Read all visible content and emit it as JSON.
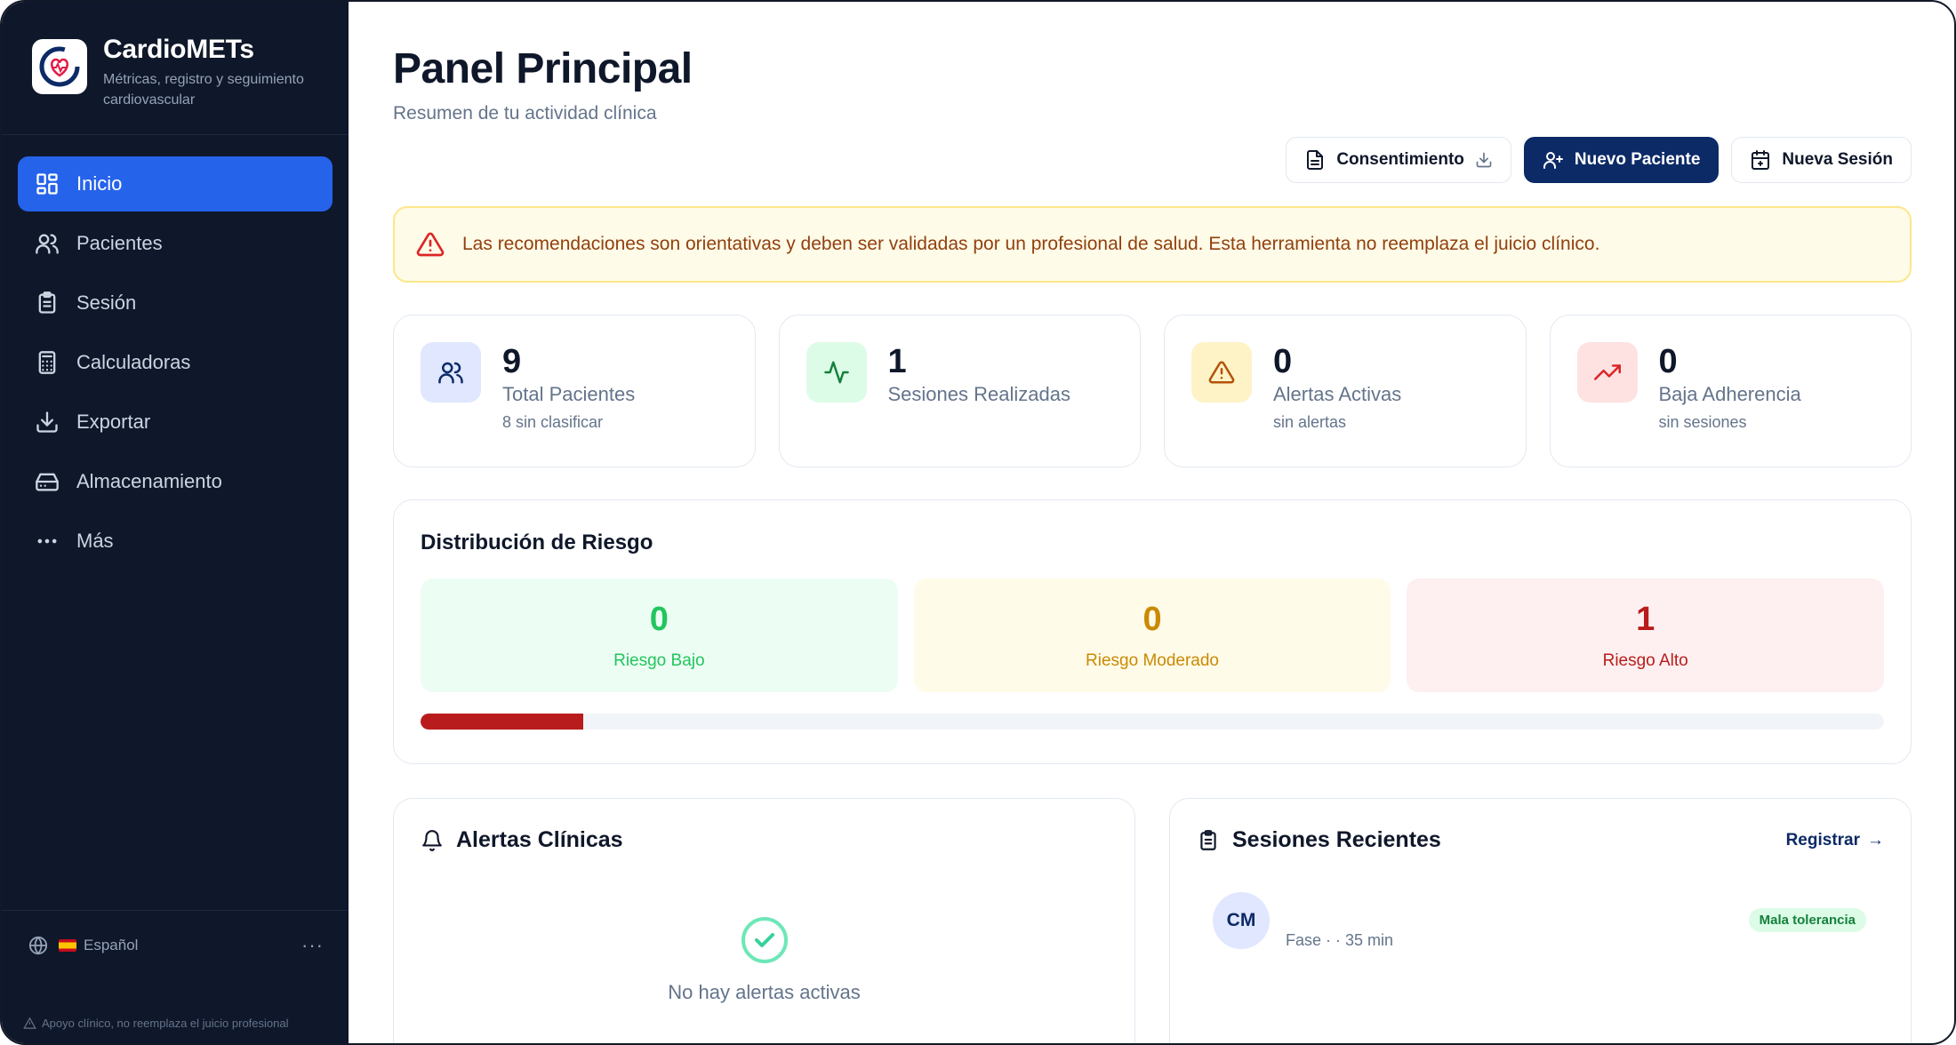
{
  "brand": {
    "name": "CardioMETs",
    "tagline": "Métricas, registro y seguimiento cardiovascular"
  },
  "sidebar": {
    "items": [
      {
        "label": "Inicio",
        "icon": "dashboard-icon",
        "active": true
      },
      {
        "label": "Pacientes",
        "icon": "users-icon"
      },
      {
        "label": "Sesión",
        "icon": "clipboard-icon"
      },
      {
        "label": "Calculadoras",
        "icon": "calculator-icon"
      },
      {
        "label": "Exportar",
        "icon": "download-icon"
      },
      {
        "label": "Almacenamiento",
        "icon": "hard-drive-icon"
      },
      {
        "label": "Más",
        "icon": "more-icon"
      }
    ],
    "language": "Español",
    "disclaimer": "Apoyo clínico, no reemplaza el juicio profesional"
  },
  "header": {
    "title": "Panel Principal",
    "subtitle": "Resumen de tu actividad clínica"
  },
  "actions": {
    "consent": "Consentimiento",
    "new_patient": "Nuevo Paciente",
    "new_session": "Nueva Sesión"
  },
  "warning": "Las recomendaciones son orientativas y deben ser validadas por un profesional de salud. Esta herramienta no reemplaza el juicio clínico.",
  "stats": [
    {
      "value": "9",
      "label": "Total Pacientes",
      "sub": "8 sin clasificar",
      "icon": "users-icon"
    },
    {
      "value": "1",
      "label": "Sesiones Realizadas",
      "sub": "",
      "icon": "activity-icon"
    },
    {
      "value": "0",
      "label": "Alertas Activas",
      "sub": "sin alertas",
      "icon": "warning-icon"
    },
    {
      "value": "0",
      "label": "Baja Adherencia",
      "sub": "sin sesiones",
      "icon": "trending-up-icon"
    }
  ],
  "risk": {
    "title": "Distribución de Riesgo",
    "low": {
      "value": "0",
      "label": "Riesgo Bajo"
    },
    "moderate": {
      "value": "0",
      "label": "Riesgo Moderado"
    },
    "high": {
      "value": "1",
      "label": "Riesgo Alto"
    },
    "high_fraction": 0.111
  },
  "alerts": {
    "title": "Alertas Clínicas",
    "empty": "No hay alertas activas"
  },
  "sessions": {
    "title": "Sesiones Recientes",
    "register": "Registrar",
    "items": [
      {
        "initials": "CM",
        "meta": "Fase · · 35 min",
        "badge": "Mala tolerancia"
      }
    ]
  },
  "colors": {
    "sidebar_bg": "#0f172a",
    "active": "#2563eb",
    "primary": "#0c2a66",
    "high_risk": "#b91c1c"
  }
}
